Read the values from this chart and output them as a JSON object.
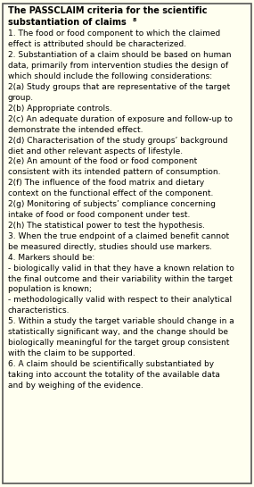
{
  "title_line1": "The PASSCLAIM criteria for the scientific",
  "title_line2": "substantiation of claims",
  "title_superscript": "8",
  "body_lines": [
    "1. The food or food component to which the claimed",
    "effect is attributed should be characterized.",
    "2. Substantiation of a claim should be based on human",
    "data, primarily from intervention studies the design of",
    "which should include the following considerations:",
    "2(a) Study groups that are representative of the target",
    "group.",
    "2(b) Appropriate controls.",
    "2(c) An adequate duration of exposure and follow-up to",
    "demonstrate the intended effect.",
    "2(d) Characterisation of the study groups’ background",
    "diet and other relevant aspects of lifestyle.",
    "2(e) An amount of the food or food component",
    "consistent with its intended pattern of consumption.",
    "2(f) The influence of the food matrix and dietary",
    "context on the functional effect of the component.",
    "2(g) Monitoring of subjects’ compliance concerning",
    "intake of food or food component under test.",
    "2(h) The statistical power to test the hypothesis.",
    "3. When the true endpoint of a claimed benefit cannot",
    "be measured directly, studies should use markers.",
    "4. Markers should be:",
    "- biologically valid in that they have a known relation to",
    "the final outcome and their variability within the target",
    "population is known;",
    "- methodologically valid with respect to their analytical",
    "characteristics.",
    "5. Within a study the target variable should change in a",
    "statistically significant way, and the change should be",
    "biologically meaningful for the target group consistent",
    "with the claim to be supported.",
    "6. A claim should be scientifically substantiated by",
    "taking into account the totality of the available data",
    "and by weighing of the evidence."
  ],
  "bg_color": "#fffff0",
  "border_color": "#555555",
  "text_color": "#000000",
  "title_fontsize": 7.0,
  "body_fontsize": 6.5,
  "fig_width": 2.85,
  "fig_height": 5.45,
  "dpi": 100
}
